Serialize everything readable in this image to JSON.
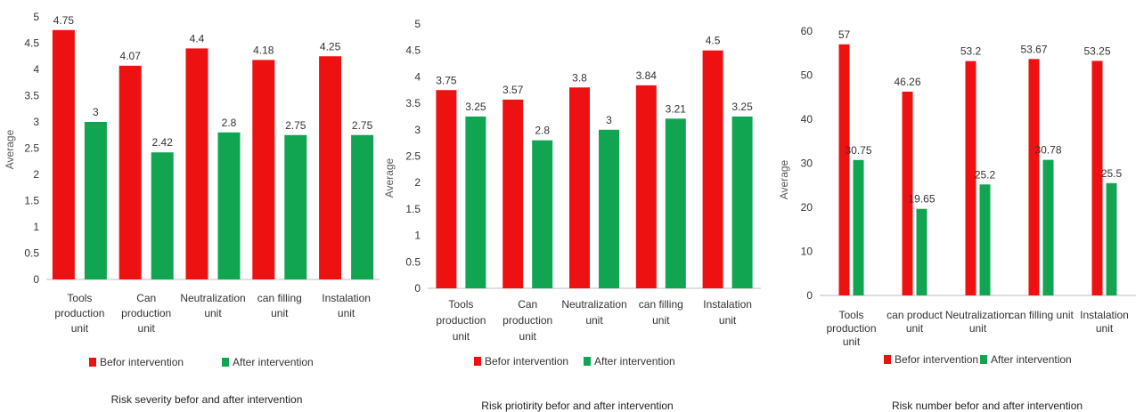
{
  "legend": {
    "before_label": "Befor intervention",
    "after_label": "After intervention"
  },
  "colors": {
    "before": "#ee1111",
    "after": "#11a552",
    "axis": "#bfbfbf",
    "text": "#333333"
  },
  "chart_data": [
    {
      "type": "bar",
      "title": "Risk severity befor and after intervention",
      "ylabel": "Average",
      "ylim": [
        0,
        5
      ],
      "yticks": [
        "0",
        "0.5",
        "1",
        "1.5",
        "2",
        "2.5",
        "3",
        "3.5",
        "4",
        "4.5",
        "5"
      ],
      "categories": [
        [
          "Tools",
          "production",
          "unit"
        ],
        [
          "Can",
          "production",
          "unit"
        ],
        [
          "Neutralization",
          "unit"
        ],
        [
          "can filling",
          "unit"
        ],
        [
          "Instalation",
          "unit"
        ]
      ],
      "series": [
        {
          "name": "Befor intervention",
          "values": [
            4.75,
            4.07,
            4.4,
            4.18,
            4.25
          ],
          "labels": [
            "4.75",
            "4.07",
            "4.4",
            "4.18",
            "4.25"
          ]
        },
        {
          "name": "After intervention",
          "values": [
            3,
            2.42,
            2.8,
            2.75,
            2.75
          ],
          "labels": [
            "3",
            "2.42",
            "2.8",
            "2.75",
            "2.75"
          ]
        }
      ]
    },
    {
      "type": "bar",
      "title": "Risk priotirity befor and after intervention",
      "ylabel": "Average",
      "ylim": [
        0,
        5
      ],
      "yticks": [
        "0",
        "0.5",
        "1",
        "1.5",
        "2",
        "2.5",
        "3",
        "3.5",
        "4",
        "4.5",
        "5"
      ],
      "categories": [
        [
          "Tools",
          "production",
          "unit"
        ],
        [
          "Can",
          "production",
          "unit"
        ],
        [
          "Neutralization",
          "unit"
        ],
        [
          "can filling",
          "unit"
        ],
        [
          "Instalation",
          "unit"
        ]
      ],
      "series": [
        {
          "name": "Befor intervention",
          "values": [
            3.75,
            3.57,
            3.8,
            3.84,
            4.5
          ],
          "labels": [
            "3.75",
            "3.57",
            "3.8",
            "3.84",
            "4.5"
          ]
        },
        {
          "name": "After intervention",
          "values": [
            3.25,
            2.8,
            3,
            3.21,
            3.25
          ],
          "labels": [
            "3.25",
            "2.8",
            "3",
            "3.21",
            "3.25"
          ]
        }
      ]
    },
    {
      "type": "bar",
      "title": "Risk number befor and after intervention",
      "ylabel": "Average",
      "ylim": [
        0,
        60
      ],
      "yticks": [
        "0",
        "10",
        "20",
        "30",
        "40",
        "50",
        "60"
      ],
      "categories": [
        [
          "Tools",
          "production",
          "unit"
        ],
        [
          "can product",
          "unit"
        ],
        [
          "Neutralization",
          "unit"
        ],
        [
          "can filling unit"
        ],
        [
          "Instalation",
          "unit"
        ]
      ],
      "series": [
        {
          "name": "Befor intervention",
          "values": [
            57,
            46.26,
            53.2,
            53.67,
            53.25
          ],
          "labels": [
            "57",
            "46.26",
            "53.2",
            "53.67",
            "53.25"
          ]
        },
        {
          "name": "After intervention",
          "values": [
            30.75,
            19.65,
            25.2,
            30.78,
            25.5
          ],
          "labels": [
            "30.75",
            "19.65",
            "25.2",
            "30.78",
            "25.5"
          ]
        }
      ]
    }
  ]
}
